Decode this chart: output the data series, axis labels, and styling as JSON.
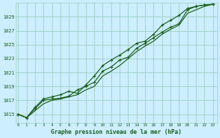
{
  "xlabel": "Graphe pression niveau de la mer (hPa)",
  "x_ticks": [
    0,
    1,
    2,
    3,
    4,
    5,
    6,
    7,
    8,
    9,
    10,
    11,
    12,
    13,
    14,
    15,
    16,
    17,
    18,
    19,
    20,
    21,
    22,
    23
  ],
  "y_ticks": [
    1015,
    1017,
    1019,
    1021,
    1023,
    1025,
    1027,
    1029
  ],
  "ylim": [
    1013.8,
    1031.0
  ],
  "xlim": [
    -0.3,
    23.5
  ],
  "bg_color": "#cceeff",
  "grid_color": "#99ccbb",
  "line_color": "#1a5c1a",
  "series1": [
    1015.0,
    1014.5,
    1016.0,
    1017.2,
    1017.5,
    1017.8,
    1018.3,
    1018.0,
    1019.2,
    1020.5,
    1022.0,
    1022.8,
    1023.5,
    1024.3,
    1025.2,
    1025.5,
    1026.5,
    1027.8,
    1028.5,
    1029.2,
    1030.2,
    1030.5,
    1030.7,
    1030.8
  ],
  "series2": [
    1015.0,
    1014.5,
    1015.8,
    1017.0,
    1017.2,
    1017.3,
    1017.6,
    1018.5,
    1019.0,
    1019.6,
    1021.2,
    1021.8,
    1022.8,
    1023.2,
    1024.5,
    1025.2,
    1026.0,
    1026.8,
    1027.5,
    1028.0,
    1030.0,
    1030.5,
    1030.7,
    1030.8
  ],
  "series3": [
    1015.0,
    1014.5,
    1015.5,
    1016.5,
    1017.0,
    1017.2,
    1017.5,
    1017.8,
    1018.5,
    1019.0,
    1020.5,
    1021.2,
    1022.0,
    1023.0,
    1024.0,
    1024.8,
    1025.5,
    1026.5,
    1027.2,
    1027.8,
    1029.5,
    1030.0,
    1030.5,
    1030.8
  ]
}
